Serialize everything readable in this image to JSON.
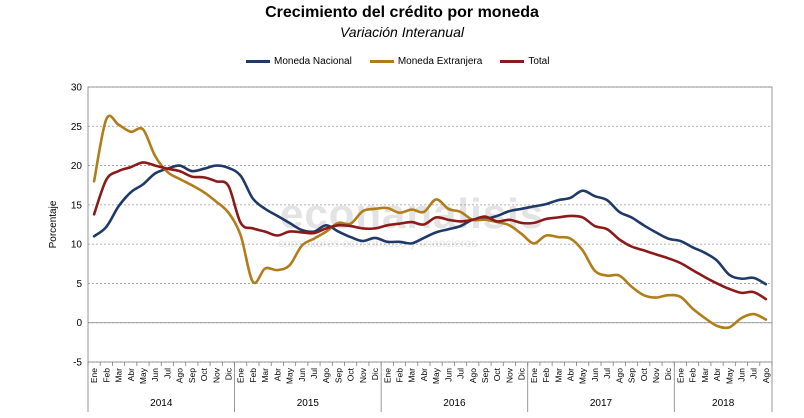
{
  "chart_data": {
    "type": "line",
    "title": "Crecimiento del crédito por moneda",
    "subtitle": "Variación Interanual",
    "ylabel": "Porcentaje",
    "ylim": [
      -5,
      30
    ],
    "yticks": [
      "-5",
      "0",
      "5",
      "10",
      "15",
      "20",
      "25",
      "30"
    ],
    "watermark": "econanalisis",
    "watermark_sub": "consultores económicos y financieros",
    "legend_placement": "top",
    "months": [
      "Ene",
      "Feb",
      "Mar",
      "Abr",
      "May",
      "Jun",
      "Jul",
      "Ago",
      "Sep",
      "Oct",
      "Nov",
      "Dic",
      "Ene",
      "Feb",
      "Mar",
      "Abr",
      "May",
      "Jun",
      "Jul",
      "Ago",
      "Sep",
      "Oct",
      "Nov",
      "Dic",
      "Ene",
      "Feb",
      "Mar",
      "Abr",
      "May",
      "Jun",
      "Jul",
      "Ago",
      "Sep",
      "Oct",
      "Nov",
      "Dic",
      "Ene",
      "Feb",
      "Mar",
      "Abr",
      "May",
      "Jun",
      "Jul",
      "Ago",
      "Sep",
      "Oct",
      "Nov",
      "Dic",
      "Ene",
      "Feb",
      "Mar",
      "Abr",
      "May",
      "Jun",
      "Jul",
      "Ago"
    ],
    "years": [
      {
        "label": "2014",
        "months": 12
      },
      {
        "label": "2015",
        "months": 12
      },
      {
        "label": "2016",
        "months": 12
      },
      {
        "label": "2017",
        "months": 12
      },
      {
        "label": "2018",
        "months": 8
      }
    ],
    "series": [
      {
        "name": "Moneda Nacional",
        "color": "#1f3a68",
        "values": [
          11.0,
          12.2,
          14.8,
          16.6,
          17.6,
          19.0,
          19.6,
          20.0,
          19.3,
          19.6,
          20.0,
          19.7,
          18.7,
          15.8,
          14.5,
          13.6,
          12.7,
          11.8,
          11.6,
          12.4,
          11.6,
          10.9,
          10.4,
          10.8,
          10.3,
          10.3,
          10.1,
          10.8,
          11.5,
          11.9,
          12.3,
          13.1,
          13.2,
          13.6,
          14.2,
          14.5,
          14.8,
          15.1,
          15.6,
          15.9,
          16.8,
          16.1,
          15.6,
          14.1,
          13.4,
          12.4,
          11.5,
          10.7,
          10.4,
          9.6,
          8.9,
          7.9,
          6.1,
          5.6,
          5.7,
          4.9
        ]
      },
      {
        "name": "Moneda Extranjera",
        "color": "#b07d1a",
        "values": [
          18.0,
          25.9,
          25.2,
          24.3,
          24.6,
          21.2,
          19.2,
          18.3,
          17.5,
          16.6,
          15.4,
          14.0,
          11.1,
          5.2,
          6.9,
          6.7,
          7.3,
          9.8,
          10.7,
          11.6,
          12.7,
          12.6,
          14.2,
          14.5,
          14.6,
          14.0,
          14.4,
          14.1,
          15.7,
          14.5,
          14.1,
          13.1,
          13.1,
          12.8,
          12.4,
          11.3,
          10.1,
          11.1,
          10.9,
          10.7,
          9.2,
          6.6,
          6.0,
          6.0,
          4.6,
          3.5,
          3.2,
          3.5,
          3.3,
          1.8,
          0.6,
          -0.4,
          -0.6,
          0.6,
          1.1,
          0.4
        ]
      },
      {
        "name": "Total",
        "color": "#8b1a1a",
        "values": [
          13.8,
          18.2,
          19.3,
          19.8,
          20.4,
          20.0,
          19.6,
          19.3,
          18.6,
          18.5,
          18.0,
          17.4,
          12.7,
          12.0,
          11.6,
          11.1,
          11.6,
          11.5,
          11.4,
          12.0,
          12.4,
          12.3,
          12.0,
          12.0,
          12.4,
          12.6,
          12.8,
          12.5,
          13.4,
          13.1,
          12.9,
          13.1,
          13.5,
          12.9,
          13.1,
          12.7,
          12.7,
          13.2,
          13.4,
          13.6,
          13.4,
          12.3,
          11.9,
          10.6,
          9.7,
          9.2,
          8.7,
          8.2,
          7.6,
          6.7,
          5.8,
          5.0,
          4.3,
          3.8,
          3.9,
          3.0
        ]
      }
    ]
  }
}
